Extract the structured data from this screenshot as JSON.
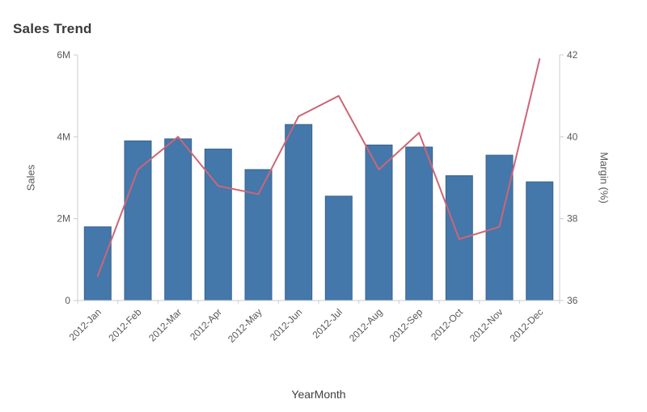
{
  "title": "Sales Trend",
  "style": {
    "bar_color": "#4477aa",
    "bar_border_color": "#39648f",
    "line_color": "#cc6677",
    "axis_color": "#cccccc",
    "text_color": "#595959",
    "title_color": "#3a3a3a"
  },
  "chart_data": {
    "type": "combo",
    "title": "Sales Trend",
    "xlabel": "YearMonth",
    "grid": "off",
    "legend": "none",
    "categories": [
      "2012-Jan",
      "2012-Feb",
      "2012-Mar",
      "2012-Apr",
      "2012-May",
      "2012-Jun",
      "2012-Jul",
      "2012-Aug",
      "2012-Sep",
      "2012-Oct",
      "2012-Nov",
      "2012-Dec"
    ],
    "series": [
      {
        "name": "Sales",
        "type": "bar",
        "axis": "left",
        "color": "#4477aa",
        "unit": "M",
        "values": [
          1.8,
          3.9,
          3.95,
          3.7,
          3.2,
          4.3,
          2.55,
          3.8,
          3.75,
          3.05,
          3.55,
          2.9
        ]
      },
      {
        "name": "Margin (%)",
        "type": "line",
        "axis": "right",
        "color": "#cc6677",
        "values": [
          36.6,
          39.2,
          40.0,
          38.8,
          38.6,
          40.5,
          41.0,
          39.2,
          40.1,
          37.5,
          37.8,
          41.9
        ]
      }
    ],
    "left_axis": {
      "label": "Sales",
      "min": 0,
      "max": 6,
      "tick_values": [
        0,
        2,
        4,
        6
      ],
      "tick_labels": [
        "0",
        "2M",
        "4M",
        "6M"
      ]
    },
    "right_axis": {
      "label": "Margin (%)",
      "min": 36,
      "max": 42,
      "tick_values": [
        36,
        38,
        40,
        42
      ],
      "tick_labels": [
        "36",
        "38",
        "40",
        "42"
      ]
    }
  }
}
